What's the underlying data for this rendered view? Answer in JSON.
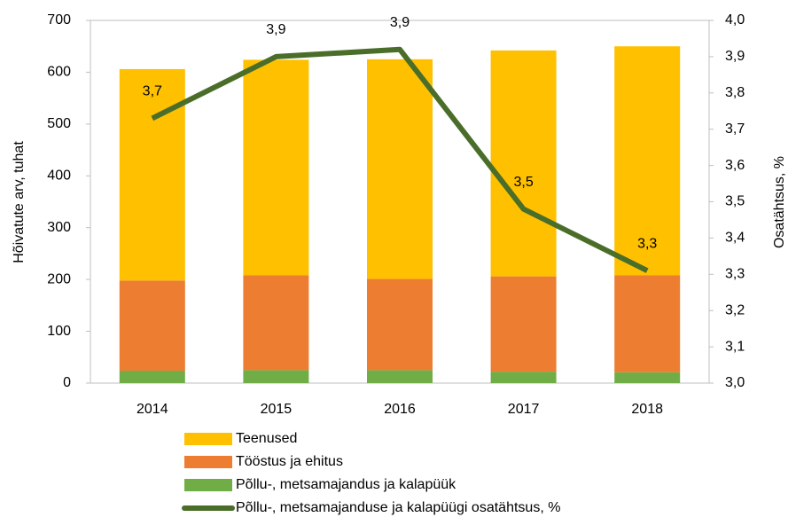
{
  "chart_data": {
    "type": "bar",
    "categories": [
      "2014",
      "2015",
      "2016",
      "2017",
      "2018"
    ],
    "stacked": true,
    "series": [
      {
        "name": "Põllu-, metsamajandus ja kalapüük",
        "color": "#70ad47",
        "values": [
          24,
          25,
          25,
          22,
          21
        ]
      },
      {
        "name": "Tööstus ja ehitus",
        "color": "#ed7d31",
        "values": [
          174,
          183,
          176,
          184,
          187
        ]
      },
      {
        "name": "Teenused",
        "color": "#ffc000",
        "values": [
          408,
          416,
          424,
          436,
          442
        ]
      },
      {
        "name": "Põllu-, metsamajanduse ja kalapüügi osatähtsus, %",
        "color": "#4a6e2a",
        "type": "line",
        "axis": "y2",
        "values": [
          3.73,
          3.9,
          3.92,
          3.48,
          3.31
        ],
        "value_labels": [
          "3,7",
          "3,9",
          "3,9",
          "3,5",
          "3,3"
        ]
      }
    ],
    "ylabel": "Hõivatute arv, tuhat",
    "y2label": "Osatähtsus, %",
    "ylim": [
      0,
      700
    ],
    "yticks": [
      0,
      100,
      200,
      300,
      400,
      500,
      600,
      700
    ],
    "y2lim": [
      3.0,
      4.0
    ],
    "y2ticks": [
      {
        "value": 3.0,
        "label": "3,0"
      },
      {
        "value": 3.1,
        "label": "3,1"
      },
      {
        "value": 3.2,
        "label": "3,2"
      },
      {
        "value": 3.3,
        "label": "3,3"
      },
      {
        "value": 3.4,
        "label": "3,4"
      },
      {
        "value": 3.5,
        "label": "3,5"
      },
      {
        "value": 3.6,
        "label": "3,6"
      },
      {
        "value": 3.7,
        "label": "3,7"
      },
      {
        "value": 3.8,
        "label": "3,8"
      },
      {
        "value": 3.9,
        "label": "3,9"
      },
      {
        "value": 4.0,
        "label": "4,0"
      }
    ],
    "legend": "bottom"
  }
}
